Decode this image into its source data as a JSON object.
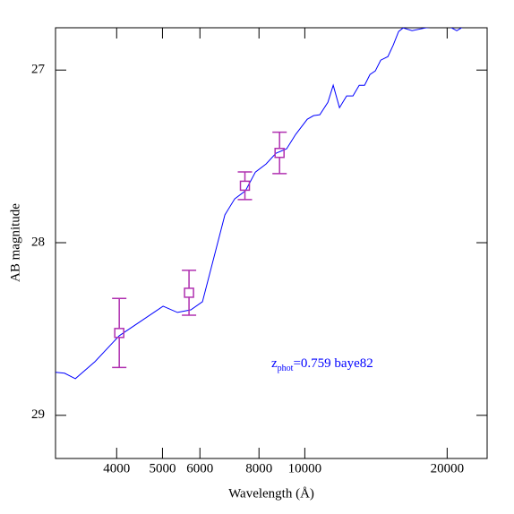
{
  "chart_data": {
    "type": "line",
    "x_label": "Wavelength (Å)",
    "y_label": "AB magnitude",
    "annotation": {
      "z": "z",
      "sub": "phot",
      "rest": "=0.759 baye82",
      "color": "#0000ff"
    },
    "xscale": "log",
    "xlim": [
      2970,
      24300
    ],
    "ylim": [
      29.25,
      26.755
    ],
    "xticks": [
      4000,
      5000,
      6000,
      8000,
      10000,
      20000
    ],
    "yticks": [
      27,
      28,
      29
    ],
    "model": {
      "color": "#0000ff",
      "x": [
        2972,
        3104,
        3271,
        3599,
        4051,
        5015,
        5378,
        5741,
        6075,
        6776,
        7108,
        7491,
        7861,
        8281,
        8688,
        9154,
        9563,
        10120,
        10435,
        10757,
        11189,
        11484,
        11840,
        12260,
        12642,
        13032,
        13378,
        13733,
        14097,
        14471,
        14986,
        15383,
        15790,
        16139,
        16858,
        17996,
        19980,
        20960,
        21890,
        22870
      ],
      "values": [
        28.751,
        28.756,
        28.788,
        28.689,
        28.539,
        28.368,
        28.404,
        28.389,
        28.342,
        27.839,
        27.746,
        27.699,
        27.591,
        27.544,
        27.482,
        27.456,
        27.373,
        27.285,
        27.264,
        27.259,
        27.187,
        27.088,
        27.218,
        27.15,
        27.15,
        27.088,
        27.088,
        27.026,
        27.005,
        26.943,
        26.922,
        26.855,
        26.777,
        26.756,
        26.772,
        26.756,
        26.741,
        26.772,
        26.741,
        26.72
      ]
    },
    "photometry": {
      "color": "#b030b0",
      "x": [
        4051,
        5690,
        7470,
        8843
      ],
      "values": [
        28.523,
        28.29,
        27.67,
        27.48
      ],
      "errors": [
        0.2,
        0.13,
        0.08,
        0.12
      ]
    }
  }
}
